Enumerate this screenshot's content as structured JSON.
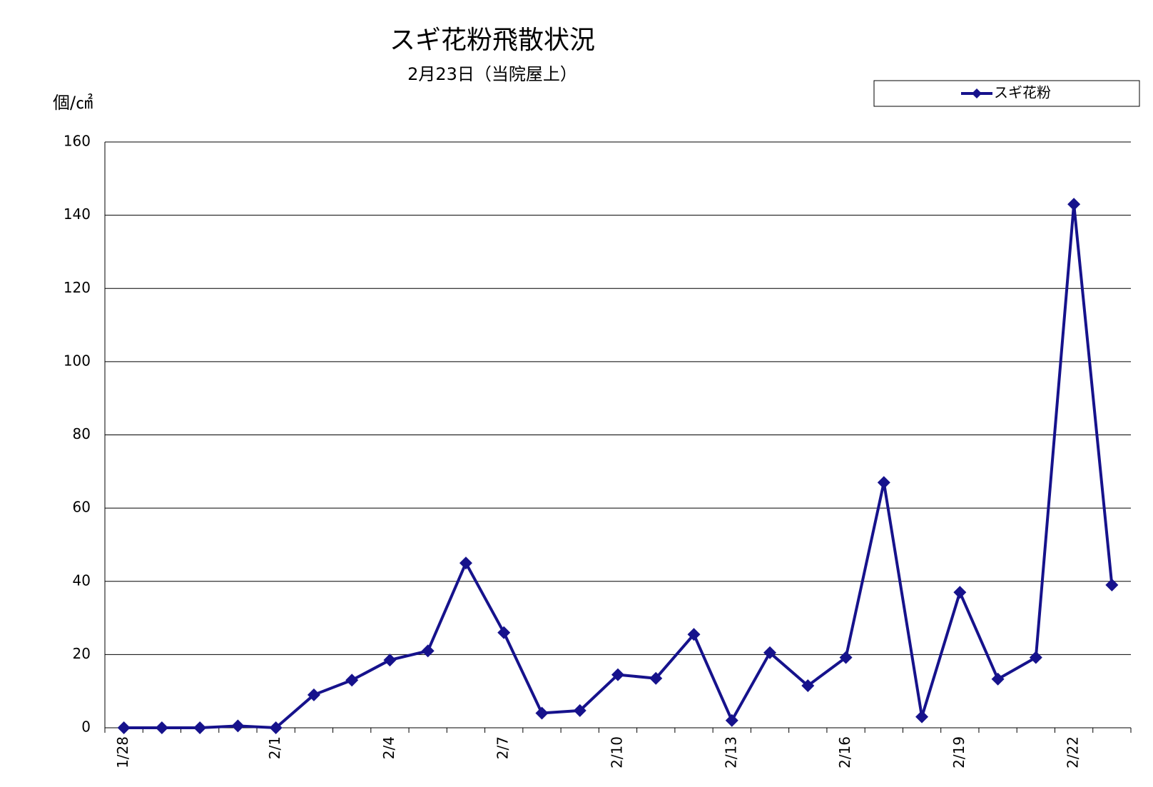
{
  "chart_data": {
    "type": "line",
    "title": "スギ花粉飛散状況",
    "subtitle": "2月23日（当院屋上）",
    "y_label": "個/㎠",
    "categories": [
      "1/28",
      null,
      null,
      null,
      "2/1",
      null,
      null,
      "2/4",
      null,
      null,
      "2/7",
      null,
      null,
      "2/10",
      null,
      null,
      "2/13",
      null,
      null,
      "2/16",
      null,
      null,
      "2/19",
      null,
      null,
      "2/22",
      null
    ],
    "series": [
      {
        "name": "スギ花粉",
        "color": "#16128c",
        "values": [
          0,
          0,
          0,
          0.5,
          0,
          9,
          13,
          18.5,
          21,
          45,
          26,
          4,
          4.7,
          14.5,
          13.5,
          25.5,
          2,
          20.5,
          11.5,
          19.2,
          67,
          3,
          37,
          13.3,
          19.2,
          143,
          39
        ]
      }
    ],
    "ylim": [
      0,
      160
    ],
    "yticks": [
      0,
      20,
      40,
      60,
      80,
      100,
      120,
      140,
      160
    ],
    "grid": true,
    "legend": "top-right"
  }
}
